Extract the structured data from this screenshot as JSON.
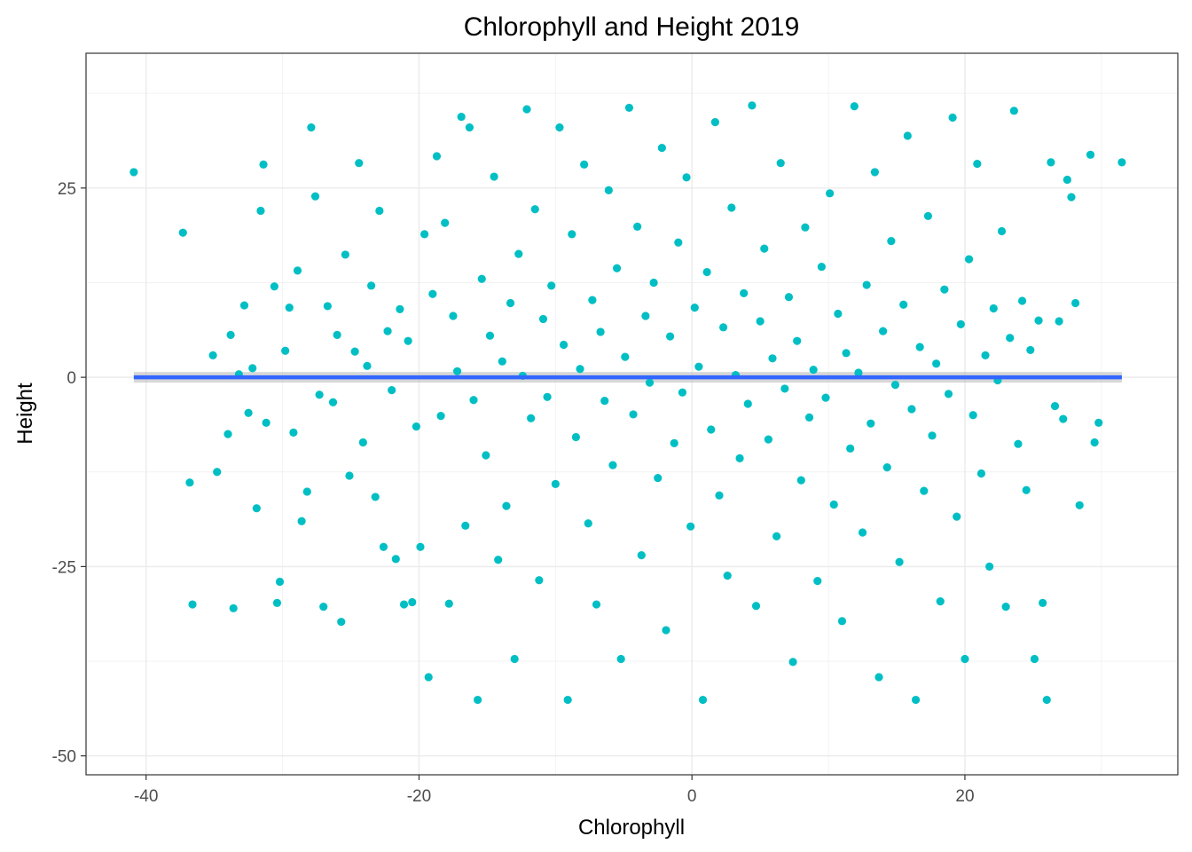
{
  "chart_data": {
    "type": "scatter",
    "title": "Chlorophyll and Height 2019",
    "xlabel": "Chlorophyll",
    "ylabel": "Height",
    "xlim": [
      -44.4,
      35.6
    ],
    "ylim": [
      -52.5,
      42.8
    ],
    "x_ticks": [
      -40,
      -20,
      0,
      20
    ],
    "x_tick_labels": [
      "-40",
      "-20",
      "0",
      "20"
    ],
    "y_ticks": [
      -50,
      -25,
      0,
      25
    ],
    "y_tick_labels": [
      "-50",
      "-25",
      "0",
      "25"
    ],
    "grid": true,
    "point_color": "#00BFC4",
    "trend_line": {
      "type": "linear",
      "x": [
        -40.9,
        31.5
      ],
      "y": [
        0,
        0
      ],
      "color": "#3366FF",
      "ribbon_color": "#BDBDBD"
    },
    "series": [
      {
        "values": [
          [
            -40.9,
            27.1
          ],
          [
            -37.3,
            19.1
          ],
          [
            -36.8,
            -13.9
          ],
          [
            -36.6,
            -30.0
          ],
          [
            -35.1,
            2.9
          ],
          [
            -34.8,
            -12.5
          ],
          [
            -34.0,
            -7.5
          ],
          [
            -33.8,
            5.6
          ],
          [
            -33.6,
            -30.5
          ],
          [
            -33.2,
            0.4
          ],
          [
            -32.8,
            9.5
          ],
          [
            -32.5,
            -4.7
          ],
          [
            -32.2,
            1.2
          ],
          [
            -31.9,
            -17.3
          ],
          [
            -31.6,
            22.0
          ],
          [
            -31.4,
            28.1
          ],
          [
            -31.2,
            -6.0
          ],
          [
            -30.6,
            12.0
          ],
          [
            -30.4,
            -29.8
          ],
          [
            -30.2,
            -27.0
          ],
          [
            -29.8,
            3.5
          ],
          [
            -29.5,
            9.2
          ],
          [
            -29.2,
            -7.3
          ],
          [
            -28.9,
            14.1
          ],
          [
            -28.6,
            -19.0
          ],
          [
            -28.2,
            -15.1
          ],
          [
            -27.9,
            33.0
          ],
          [
            -27.6,
            23.9
          ],
          [
            -27.3,
            -2.3
          ],
          [
            -27.0,
            -30.3
          ],
          [
            -26.7,
            9.4
          ],
          [
            -26.3,
            -3.3
          ],
          [
            -26.0,
            5.6
          ],
          [
            -25.7,
            -32.3
          ],
          [
            -25.4,
            16.2
          ],
          [
            -25.1,
            -13.0
          ],
          [
            -24.7,
            3.4
          ],
          [
            -24.4,
            28.3
          ],
          [
            -24.1,
            -8.6
          ],
          [
            -23.8,
            1.5
          ],
          [
            -23.5,
            12.1
          ],
          [
            -23.2,
            -15.8
          ],
          [
            -22.9,
            22.0
          ],
          [
            -22.6,
            -22.4
          ],
          [
            -22.3,
            6.1
          ],
          [
            -22.0,
            -1.7
          ],
          [
            -21.7,
            -24.0
          ],
          [
            -21.4,
            9.0
          ],
          [
            -21.1,
            -30.0
          ],
          [
            -20.8,
            4.8
          ],
          [
            -20.5,
            -29.7
          ],
          [
            -20.2,
            -6.5
          ],
          [
            -19.9,
            -22.4
          ],
          [
            -19.6,
            18.9
          ],
          [
            -19.3,
            -39.6
          ],
          [
            -19.0,
            11.0
          ],
          [
            -18.7,
            29.2
          ],
          [
            -18.4,
            -5.1
          ],
          [
            -18.1,
            20.4
          ],
          [
            -17.8,
            -29.9
          ],
          [
            -17.5,
            8.1
          ],
          [
            -17.2,
            0.8
          ],
          [
            -16.9,
            34.4
          ],
          [
            -16.6,
            -19.6
          ],
          [
            -16.3,
            33.0
          ],
          [
            -16.0,
            -3.0
          ],
          [
            -15.7,
            -42.6
          ],
          [
            -15.4,
            13.0
          ],
          [
            -15.1,
            -10.3
          ],
          [
            -14.8,
            5.5
          ],
          [
            -14.5,
            26.5
          ],
          [
            -14.2,
            -24.1
          ],
          [
            -13.9,
            2.1
          ],
          [
            -13.6,
            -17.0
          ],
          [
            -13.3,
            9.8
          ],
          [
            -13.0,
            -37.2
          ],
          [
            -12.7,
            16.3
          ],
          [
            -12.4,
            0.2
          ],
          [
            -12.1,
            35.4
          ],
          [
            -11.8,
            -5.4
          ],
          [
            -11.5,
            22.2
          ],
          [
            -11.2,
            -26.8
          ],
          [
            -10.9,
            7.7
          ],
          [
            -10.6,
            -2.6
          ],
          [
            -10.3,
            12.1
          ],
          [
            -10.0,
            -14.1
          ],
          [
            -9.7,
            33.0
          ],
          [
            -9.4,
            4.3
          ],
          [
            -9.1,
            -42.6
          ],
          [
            -8.8,
            18.9
          ],
          [
            -8.5,
            -7.9
          ],
          [
            -8.2,
            1.1
          ],
          [
            -7.9,
            28.1
          ],
          [
            -7.6,
            -19.3
          ],
          [
            -7.3,
            10.2
          ],
          [
            -7.0,
            -30.0
          ],
          [
            -6.7,
            6.0
          ],
          [
            -6.4,
            -3.1
          ],
          [
            -6.1,
            24.7
          ],
          [
            -5.8,
            -11.6
          ],
          [
            -5.5,
            14.4
          ],
          [
            -5.2,
            -37.2
          ],
          [
            -4.9,
            2.7
          ],
          [
            -4.6,
            35.6
          ],
          [
            -4.3,
            -4.9
          ],
          [
            -4.0,
            19.9
          ],
          [
            -3.7,
            -23.5
          ],
          [
            -3.4,
            8.1
          ],
          [
            -3.1,
            -0.7
          ],
          [
            -2.8,
            12.5
          ],
          [
            -2.5,
            -13.3
          ],
          [
            -2.2,
            30.3
          ],
          [
            -1.9,
            -33.4
          ],
          [
            -1.6,
            5.4
          ],
          [
            -1.3,
            -8.7
          ],
          [
            -1.0,
            17.8
          ],
          [
            -0.7,
            -2.0
          ],
          [
            -0.4,
            26.4
          ],
          [
            -0.1,
            -19.7
          ],
          [
            0.2,
            9.2
          ],
          [
            0.5,
            1.4
          ],
          [
            0.8,
            -42.6
          ],
          [
            1.1,
            13.9
          ],
          [
            1.4,
            -6.9
          ],
          [
            1.7,
            33.7
          ],
          [
            2.0,
            -15.6
          ],
          [
            2.3,
            6.6
          ],
          [
            2.6,
            -26.2
          ],
          [
            2.9,
            22.4
          ],
          [
            3.2,
            0.3
          ],
          [
            3.5,
            -10.7
          ],
          [
            3.8,
            11.1
          ],
          [
            4.1,
            -3.5
          ],
          [
            4.4,
            35.9
          ],
          [
            4.7,
            -30.2
          ],
          [
            5.0,
            7.4
          ],
          [
            5.3,
            17.0
          ],
          [
            5.6,
            -8.2
          ],
          [
            5.9,
            2.5
          ],
          [
            6.2,
            -21.0
          ],
          [
            6.5,
            28.3
          ],
          [
            6.8,
            -1.5
          ],
          [
            7.1,
            10.6
          ],
          [
            7.4,
            -37.6
          ],
          [
            7.7,
            4.8
          ],
          [
            8.0,
            -13.6
          ],
          [
            8.3,
            19.8
          ],
          [
            8.6,
            -5.3
          ],
          [
            8.9,
            1.0
          ],
          [
            9.2,
            -26.9
          ],
          [
            9.5,
            14.6
          ],
          [
            9.8,
            -2.7
          ],
          [
            10.1,
            24.3
          ],
          [
            10.4,
            -16.8
          ],
          [
            10.7,
            8.4
          ],
          [
            11.0,
            -32.2
          ],
          [
            11.3,
            3.2
          ],
          [
            11.6,
            -9.4
          ],
          [
            11.9,
            35.8
          ],
          [
            12.2,
            0.6
          ],
          [
            12.5,
            -20.5
          ],
          [
            12.8,
            12.2
          ],
          [
            13.1,
            -6.1
          ],
          [
            13.4,
            27.1
          ],
          [
            13.7,
            -39.6
          ],
          [
            14.0,
            6.1
          ],
          [
            14.3,
            -11.9
          ],
          [
            14.6,
            18.0
          ],
          [
            14.9,
            -1.0
          ],
          [
            15.2,
            -24.4
          ],
          [
            15.5,
            9.6
          ],
          [
            15.8,
            31.9
          ],
          [
            16.1,
            -4.2
          ],
          [
            16.4,
            -42.6
          ],
          [
            16.7,
            4.0
          ],
          [
            17.0,
            -15.0
          ],
          [
            17.3,
            21.3
          ],
          [
            17.6,
            -7.7
          ],
          [
            17.9,
            1.8
          ],
          [
            18.2,
            -29.6
          ],
          [
            18.5,
            11.6
          ],
          [
            18.8,
            -2.2
          ],
          [
            19.1,
            34.3
          ],
          [
            19.4,
            -18.4
          ],
          [
            19.7,
            7.0
          ],
          [
            20.0,
            -37.2
          ],
          [
            20.3,
            15.6
          ],
          [
            20.6,
            -5.0
          ],
          [
            20.9,
            28.2
          ],
          [
            21.2,
            -12.7
          ],
          [
            21.5,
            2.9
          ],
          [
            21.8,
            -25.0
          ],
          [
            22.1,
            9.1
          ],
          [
            22.4,
            -0.4
          ],
          [
            22.7,
            19.3
          ],
          [
            23.0,
            -30.3
          ],
          [
            23.3,
            5.2
          ],
          [
            23.6,
            35.2
          ],
          [
            23.9,
            -8.8
          ],
          [
            24.2,
            10.1
          ],
          [
            24.5,
            -14.9
          ],
          [
            24.8,
            3.6
          ],
          [
            25.1,
            -37.2
          ],
          [
            25.4,
            7.5
          ],
          [
            25.7,
            -29.8
          ],
          [
            26.0,
            -42.6
          ],
          [
            26.3,
            28.4
          ],
          [
            26.6,
            -3.8
          ],
          [
            26.9,
            7.4
          ],
          [
            27.2,
            -5.5
          ],
          [
            27.5,
            26.1
          ],
          [
            27.8,
            23.8
          ],
          [
            28.1,
            9.8
          ],
          [
            28.4,
            -16.9
          ],
          [
            29.2,
            29.4
          ],
          [
            29.5,
            -8.6
          ],
          [
            29.8,
            -6.0
          ],
          [
            31.5,
            28.4
          ]
        ]
      }
    ]
  }
}
